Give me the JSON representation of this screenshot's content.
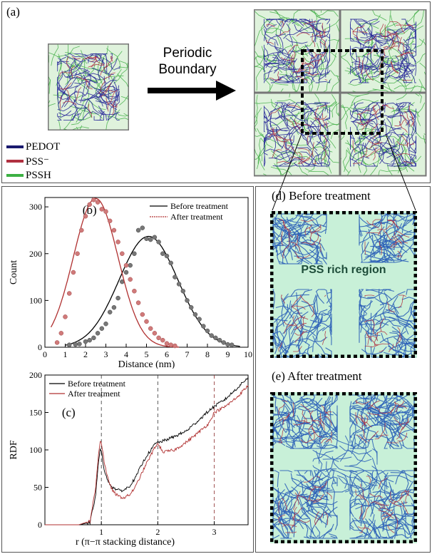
{
  "panel_a": {
    "label": "(a)",
    "arrow_text_line1": "Periodic",
    "arrow_text_line2": "Boundary",
    "legend": [
      {
        "name": "PEDOT",
        "color": "#1a1a6e"
      },
      {
        "name": "PSS⁻",
        "color": "#b03040"
      },
      {
        "name": "PSSH",
        "color": "#3cb043"
      }
    ]
  },
  "panel_d": {
    "label": "(d) Before treatment",
    "region_text": "PSS rich region"
  },
  "panel_e": {
    "label": "(e) After treatment"
  },
  "colors": {
    "pedot": "#2a4fa8",
    "pss": "#b03040",
    "pssh": "#46b04a",
    "bg_region": "#c8f0d8",
    "before": "#000000",
    "after": "#b03030"
  },
  "chart_data": [
    {
      "panel": "(b)",
      "type": "scatter",
      "xlabel": "Distance (nm)",
      "ylabel": "Count",
      "xlim": [
        0,
        10
      ],
      "ylim": [
        0,
        320
      ],
      "xticks": [
        0,
        1,
        2,
        3,
        4,
        5,
        6,
        7,
        8,
        9,
        10
      ],
      "yticks": [
        0,
        100,
        200,
        300
      ],
      "legend_position": "top-right",
      "series": [
        {
          "name": "Before treatment",
          "color": "#000000",
          "points": [
            [
              1.2,
              5
            ],
            [
              1.5,
              6
            ],
            [
              1.7,
              7
            ],
            [
              2.0,
              12
            ],
            [
              2.2,
              15
            ],
            [
              2.4,
              20
            ],
            [
              2.6,
              30
            ],
            [
              2.8,
              40
            ],
            [
              3.0,
              50
            ],
            [
              3.2,
              75
            ],
            [
              3.4,
              85
            ],
            [
              3.6,
              105
            ],
            [
              3.8,
              140
            ],
            [
              4.0,
              160
            ],
            [
              4.2,
              175
            ],
            [
              4.4,
              200
            ],
            [
              4.6,
              250
            ],
            [
              4.8,
              255
            ],
            [
              5.0,
              232
            ],
            [
              5.2,
              230
            ],
            [
              5.4,
              235
            ],
            [
              5.6,
              225
            ],
            [
              5.8,
              200
            ],
            [
              6.0,
              195
            ],
            [
              6.2,
              180
            ],
            [
              6.4,
              150
            ],
            [
              6.6,
              135
            ],
            [
              6.8,
              120
            ],
            [
              7.0,
              100
            ],
            [
              7.2,
              85
            ],
            [
              7.4,
              70
            ],
            [
              7.6,
              60
            ],
            [
              7.8,
              45
            ],
            [
              8.0,
              35
            ],
            [
              8.2,
              25
            ],
            [
              8.4,
              20
            ],
            [
              8.6,
              15
            ],
            [
              8.8,
              10
            ],
            [
              9.0,
              6
            ],
            [
              9.2,
              5
            ]
          ],
          "fit": {
            "peak_x": 5.1,
            "peak_y": 237,
            "sigma": 1.45,
            "x_range": [
              1.0,
              9.6
            ]
          }
        },
        {
          "name": "After treatment",
          "color": "#b03030",
          "points": [
            [
              0.6,
              10
            ],
            [
              0.8,
              30
            ],
            [
              1.0,
              65
            ],
            [
              1.2,
              115
            ],
            [
              1.4,
              160
            ],
            [
              1.6,
              200
            ],
            [
              1.8,
              250
            ],
            [
              2.0,
              280
            ],
            [
              2.2,
              305
            ],
            [
              2.4,
              315
            ],
            [
              2.6,
              310
            ],
            [
              2.8,
              295
            ],
            [
              3.0,
              290
            ],
            [
              3.2,
              270
            ],
            [
              3.4,
              250
            ],
            [
              3.6,
              225
            ],
            [
              3.8,
              200
            ],
            [
              4.0,
              175
            ],
            [
              4.2,
              145
            ],
            [
              4.4,
              120
            ],
            [
              4.6,
              95
            ],
            [
              4.8,
              70
            ],
            [
              5.0,
              55
            ],
            [
              5.2,
              40
            ],
            [
              5.4,
              30
            ],
            [
              5.6,
              20
            ],
            [
              5.8,
              15
            ],
            [
              6.0,
              8
            ],
            [
              6.2,
              5
            ],
            [
              6.4,
              3
            ]
          ],
          "fit": {
            "peak_x": 2.5,
            "peak_y": 318,
            "sigma": 1.1,
            "x_range": [
              0.3,
              6.6
            ]
          }
        }
      ]
    },
    {
      "panel": "(c)",
      "type": "line",
      "xlabel": "r (π−π stacking distance)",
      "ylabel": "RDF",
      "xlim": [
        0,
        3.6
      ],
      "ylim": [
        0,
        200
      ],
      "xticks": [
        1,
        2,
        3
      ],
      "yticks": [
        0,
        50,
        100,
        150,
        200
      ],
      "dashed_vlines": [
        1,
        2,
        3
      ],
      "legend_position": "top-left",
      "series": [
        {
          "name": "Before treatment",
          "color": "#000000",
          "x": [
            0.0,
            0.6,
            0.8,
            0.9,
            0.95,
            0.98,
            1.0,
            1.05,
            1.1,
            1.2,
            1.3,
            1.4,
            1.5,
            1.6,
            1.7,
            1.8,
            1.9,
            1.95,
            2.0,
            2.1,
            2.3,
            2.5,
            2.7,
            2.9,
            3.0,
            3.2,
            3.4,
            3.6
          ],
          "y": [
            0,
            0,
            3,
            40,
            85,
            100,
            97,
            75,
            60,
            50,
            46,
            46,
            52,
            62,
            78,
            92,
            102,
            108,
            110,
            112,
            118,
            125,
            138,
            152,
            158,
            168,
            182,
            197
          ]
        },
        {
          "name": "After treatment",
          "color": "#b03030",
          "x": [
            0.0,
            0.6,
            0.8,
            0.9,
            0.95,
            0.98,
            1.0,
            1.05,
            1.1,
            1.2,
            1.3,
            1.4,
            1.5,
            1.6,
            1.7,
            1.8,
            1.9,
            1.95,
            2.0,
            2.1,
            2.3,
            2.5,
            2.7,
            2.9,
            3.0,
            3.2,
            3.4,
            3.6
          ],
          "y": [
            0,
            0,
            5,
            50,
            95,
            112,
            110,
            85,
            65,
            45,
            38,
            36,
            40,
            50,
            66,
            82,
            96,
            104,
            108,
            97,
            100,
            110,
            122,
            135,
            150,
            158,
            170,
            186
          ]
        }
      ]
    }
  ]
}
